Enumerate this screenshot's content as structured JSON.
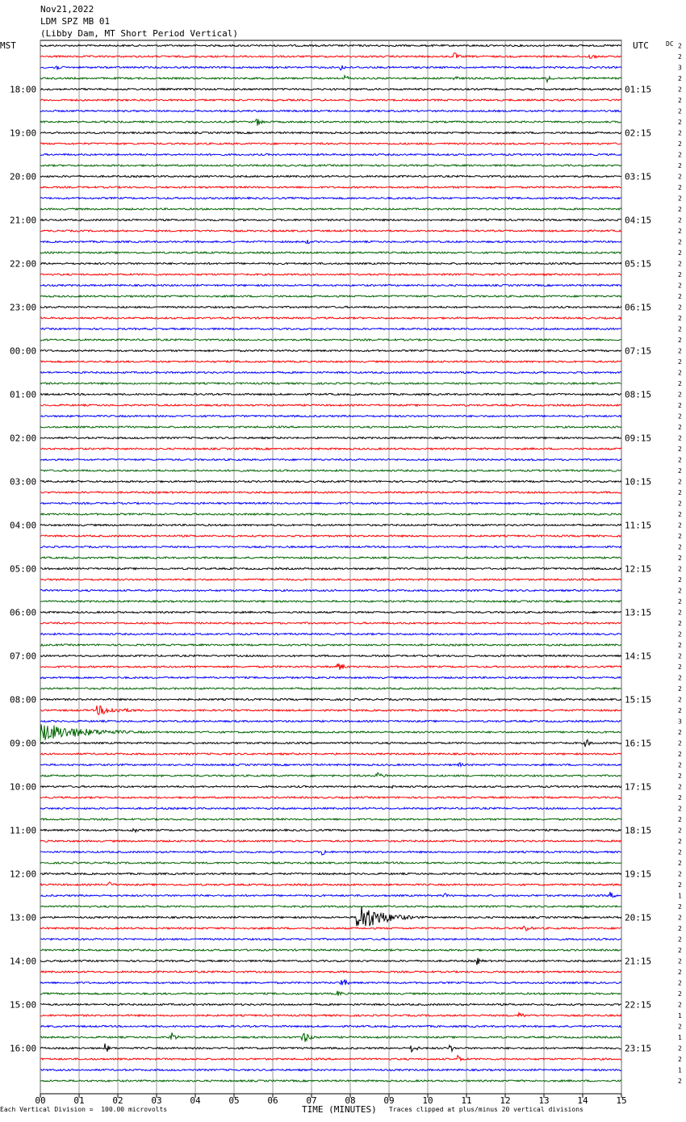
{
  "header": {
    "date": "Nov21,2022",
    "station": "LDM SPZ MB 01",
    "description": "(Libby Dam, MT Short Period Vertical)",
    "tz_left": "MST",
    "tz_right": "UTC",
    "dc_label": "DC"
  },
  "footer": {
    "left": "Each Vertical Division =  100.00 microvolts",
    "center": "TIME (MINUTES)",
    "right": "Traces clipped at plus/minus 20 vertical divisions"
  },
  "colors": {
    "black": "#000000",
    "red": "#ff0000",
    "blue": "#0000ff",
    "green": "#006400",
    "grid": "#808080"
  },
  "chart_data": {
    "type": "line",
    "title": "LDM SPZ MB 01 (Libby Dam, MT Short Period Vertical)",
    "xlabel": "TIME (MINUTES)",
    "xlim": [
      0,
      15
    ],
    "x_ticks": [
      "00",
      "01",
      "02",
      "03",
      "04",
      "05",
      "06",
      "07",
      "08",
      "09",
      "10",
      "11",
      "12",
      "13",
      "14",
      "15"
    ],
    "trace_count": 96,
    "trace_colors_cycle": [
      "black",
      "red",
      "blue",
      "green"
    ],
    "left_time_labels": [
      {
        "trace": 4,
        "label": "18:00"
      },
      {
        "trace": 8,
        "label": "19:00"
      },
      {
        "trace": 12,
        "label": "20:00"
      },
      {
        "trace": 16,
        "label": "21:00"
      },
      {
        "trace": 20,
        "label": "22:00"
      },
      {
        "trace": 24,
        "label": "23:00"
      },
      {
        "trace": 28,
        "label": "00:00"
      },
      {
        "trace": 32,
        "label": "01:00"
      },
      {
        "trace": 36,
        "label": "02:00"
      },
      {
        "trace": 40,
        "label": "03:00"
      },
      {
        "trace": 44,
        "label": "04:00"
      },
      {
        "trace": 48,
        "label": "05:00"
      },
      {
        "trace": 52,
        "label": "06:00"
      },
      {
        "trace": 56,
        "label": "07:00"
      },
      {
        "trace": 60,
        "label": "08:00"
      },
      {
        "trace": 64,
        "label": "09:00"
      },
      {
        "trace": 68,
        "label": "10:00"
      },
      {
        "trace": 72,
        "label": "11:00"
      },
      {
        "trace": 76,
        "label": "12:00"
      },
      {
        "trace": 80,
        "label": "13:00"
      },
      {
        "trace": 84,
        "label": "14:00"
      },
      {
        "trace": 88,
        "label": "15:00"
      },
      {
        "trace": 92,
        "label": "16:00"
      }
    ],
    "right_time_labels": [
      {
        "trace": 4,
        "label": "01:15"
      },
      {
        "trace": 8,
        "label": "02:15"
      },
      {
        "trace": 12,
        "label": "03:15"
      },
      {
        "trace": 16,
        "label": "04:15"
      },
      {
        "trace": 20,
        "label": "05:15"
      },
      {
        "trace": 24,
        "label": "06:15"
      },
      {
        "trace": 28,
        "label": "07:15"
      },
      {
        "trace": 32,
        "label": "08:15"
      },
      {
        "trace": 36,
        "label": "09:15"
      },
      {
        "trace": 40,
        "label": "10:15"
      },
      {
        "trace": 44,
        "label": "11:15"
      },
      {
        "trace": 48,
        "label": "12:15"
      },
      {
        "trace": 52,
        "label": "13:15"
      },
      {
        "trace": 56,
        "label": "14:15"
      },
      {
        "trace": 60,
        "label": "15:15"
      },
      {
        "trace": 64,
        "label": "16:15"
      },
      {
        "trace": 68,
        "label": "17:15"
      },
      {
        "trace": 72,
        "label": "18:15"
      },
      {
        "trace": 76,
        "label": "19:15"
      },
      {
        "trace": 80,
        "label": "20:15"
      },
      {
        "trace": 84,
        "label": "21:15"
      },
      {
        "trace": 88,
        "label": "22:15"
      },
      {
        "trace": 92,
        "label": "23:15"
      }
    ],
    "dc_offsets": [
      "2",
      "2",
      "3",
      "2",
      "2",
      "2",
      "2",
      "2",
      "2",
      "2",
      "2",
      "2",
      "2",
      "2",
      "2",
      "2",
      "2",
      "2",
      "2",
      "2",
      "2",
      "2",
      "2",
      "2",
      "2",
      "2",
      "2",
      "2",
      "2",
      "2",
      "2",
      "2",
      "2",
      "2",
      "2",
      "2",
      "2",
      "2",
      "2",
      "2",
      "2",
      "2",
      "2",
      "2",
      "2",
      "2",
      "2",
      "2",
      "2",
      "2",
      "2",
      "2",
      "2",
      "2",
      "2",
      "2",
      "2",
      "2",
      "2",
      "2",
      "2",
      "2",
      "3",
      "2",
      "2",
      "2",
      "2",
      "2",
      "2",
      "2",
      "2",
      "2",
      "2",
      "2",
      "2",
      "2",
      "2",
      "2",
      "1",
      "2",
      "2",
      "2",
      "2",
      "2",
      "2",
      "2",
      "2",
      "2",
      "2",
      "1",
      "2",
      "1",
      "2",
      "2",
      "1",
      "2"
    ],
    "events": [
      {
        "trace": 1,
        "minute": 10.7,
        "amplitude": 5,
        "duration": 0.4
      },
      {
        "trace": 1,
        "minute": 14.2,
        "amplitude": 4,
        "duration": 0.5
      },
      {
        "trace": 2,
        "minute": 0.4,
        "amplitude": 4,
        "duration": 0.4
      },
      {
        "trace": 2,
        "minute": 7.8,
        "amplitude": 4,
        "duration": 0.3
      },
      {
        "trace": 3,
        "minute": 7.9,
        "amplitude": 4,
        "duration": 0.3
      },
      {
        "trace": 3,
        "minute": 10.7,
        "amplitude": 4,
        "duration": 0.3
      },
      {
        "trace": 3,
        "minute": 13.1,
        "amplitude": 5,
        "duration": 0.4
      },
      {
        "trace": 7,
        "minute": 5.6,
        "amplitude": 5,
        "duration": 0.5
      },
      {
        "trace": 18,
        "minute": 6.9,
        "amplitude": 3,
        "duration": 0.3
      },
      {
        "trace": 57,
        "minute": 7.7,
        "amplitude": 6,
        "duration": 0.5
      },
      {
        "trace": 61,
        "minute": 1.5,
        "amplitude": 6,
        "duration": 2.0
      },
      {
        "trace": 63,
        "minute": 0.0,
        "amplitude": 12,
        "duration": 3.5
      },
      {
        "trace": 64,
        "minute": 14.1,
        "amplitude": 5,
        "duration": 0.4
      },
      {
        "trace": 66,
        "minute": 10.8,
        "amplitude": 4,
        "duration": 0.3
      },
      {
        "trace": 67,
        "minute": 8.7,
        "amplitude": 4,
        "duration": 0.8
      },
      {
        "trace": 68,
        "minute": 9.1,
        "amplitude": 4,
        "duration": 0.2
      },
      {
        "trace": 72,
        "minute": 2.4,
        "amplitude": 4,
        "duration": 0.4
      },
      {
        "trace": 74,
        "minute": 7.3,
        "amplitude": 5,
        "duration": 0.3
      },
      {
        "trace": 77,
        "minute": 1.8,
        "amplitude": 4,
        "duration": 0.3
      },
      {
        "trace": 78,
        "minute": 10.4,
        "amplitude": 5,
        "duration": 0.3
      },
      {
        "trace": 78,
        "minute": 14.7,
        "amplitude": 5,
        "duration": 0.4
      },
      {
        "trace": 80,
        "minute": 8.2,
        "amplitude": 20,
        "duration": 1.8
      },
      {
        "trace": 81,
        "minute": 12.5,
        "amplitude": 5,
        "duration": 0.5
      },
      {
        "trace": 84,
        "minute": 11.3,
        "amplitude": 5,
        "duration": 0.3
      },
      {
        "trace": 86,
        "minute": 7.8,
        "amplitude": 6,
        "duration": 0.4
      },
      {
        "trace": 87,
        "minute": 7.7,
        "amplitude": 5,
        "duration": 0.3
      },
      {
        "trace": 89,
        "minute": 12.4,
        "amplitude": 5,
        "duration": 0.3
      },
      {
        "trace": 91,
        "minute": 3.4,
        "amplitude": 6,
        "duration": 0.4
      },
      {
        "trace": 91,
        "minute": 6.8,
        "amplitude": 7,
        "duration": 0.6
      },
      {
        "trace": 92,
        "minute": 1.7,
        "amplitude": 6,
        "duration": 0.3
      },
      {
        "trace": 92,
        "minute": 9.6,
        "amplitude": 5,
        "duration": 0.5
      },
      {
        "trace": 92,
        "minute": 10.6,
        "amplitude": 5,
        "duration": 0.3
      },
      {
        "trace": 93,
        "minute": 10.8,
        "amplitude": 5,
        "duration": 0.3
      }
    ]
  }
}
